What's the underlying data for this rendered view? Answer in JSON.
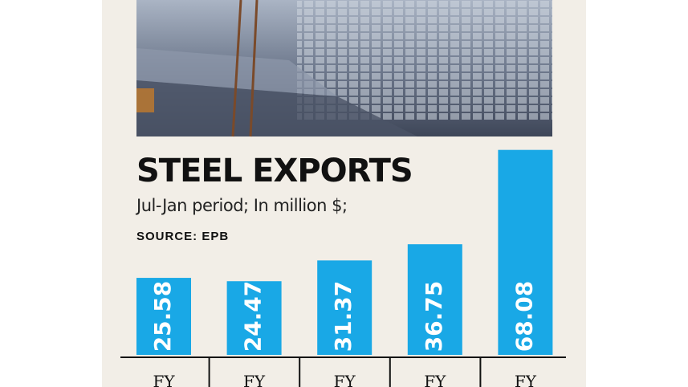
{
  "chart_data": {
    "type": "bar",
    "title": "STEEL EXPORTS",
    "subtitle": "Jul-Jan period; In million $;",
    "source": "SOURCE: EPB",
    "categories": [
      "FY",
      "FY",
      "FY",
      "FY",
      "FY"
    ],
    "values": [
      25.58,
      24.47,
      31.37,
      36.75,
      68.08
    ],
    "color": "#19a8e6"
  }
}
